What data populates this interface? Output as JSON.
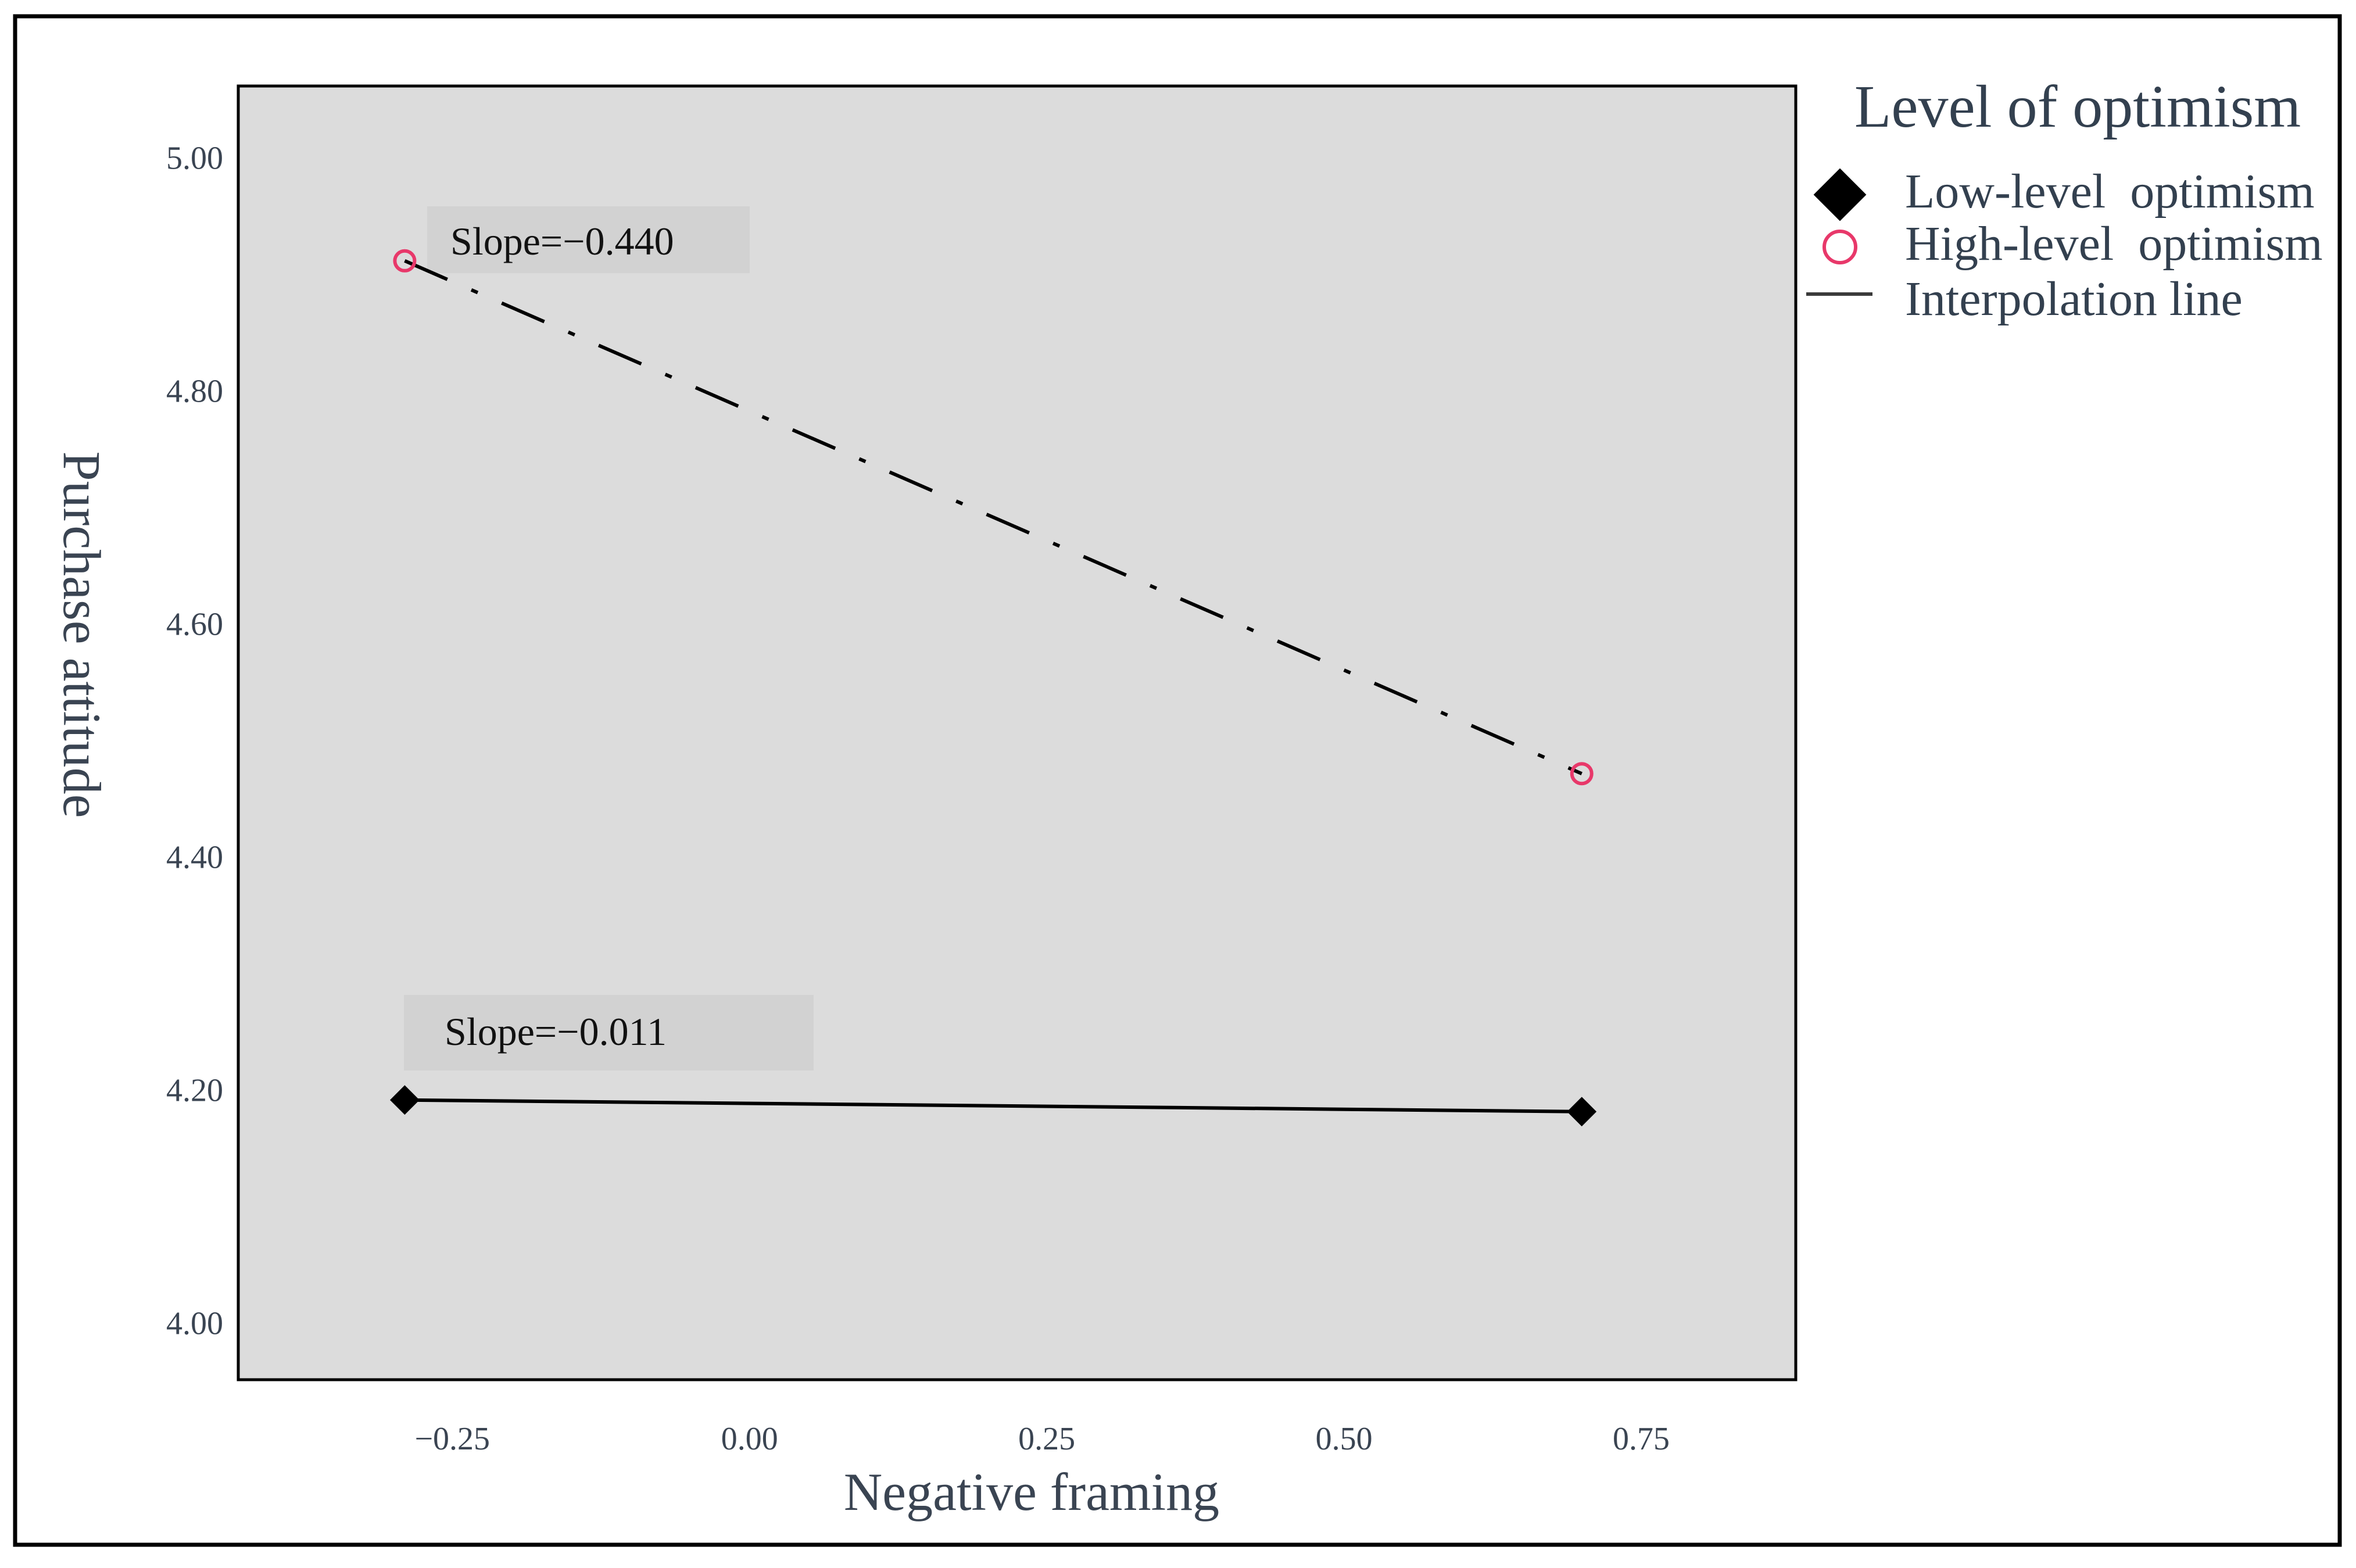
{
  "chart_data": {
    "type": "line",
    "xlabel": "Negative framing",
    "ylabel": "Purchase attitude",
    "xlim": [
      -0.43,
      0.88
    ],
    "ylim": [
      3.95,
      5.06
    ],
    "x_ticks": [
      -0.25,
      0.0,
      0.25,
      0.5,
      0.75
    ],
    "x_tick_labels": [
      "−0.25",
      "0.00",
      "0.25",
      "0.50",
      "0.75"
    ],
    "y_ticks": [
      4.0,
      4.2,
      4.4,
      4.6,
      4.8,
      5.0
    ],
    "y_tick_labels": [
      "4.00",
      "4.20",
      "4.40",
      "4.60",
      "4.80",
      "5.00"
    ],
    "grid": false,
    "legend": {
      "title": "Level of optimism",
      "position": "right",
      "items": [
        {
          "label": "Low-level  optimism",
          "marker": "diamond"
        },
        {
          "label": "High-level  optimism",
          "marker": "circle"
        },
        {
          "label": "Interpolation line",
          "marker": "line"
        }
      ]
    },
    "series": [
      {
        "name": "Low-level  optimism",
        "x": [
          -0.29,
          0.7
        ],
        "y": [
          4.19,
          4.18
        ],
        "marker": "diamond",
        "line_style": "solid",
        "color": "#000000",
        "annotation": "Slope=−0.011"
      },
      {
        "name": "High-level  optimism",
        "x": [
          -0.29,
          0.7
        ],
        "y": [
          4.91,
          4.47
        ],
        "marker": "circle",
        "line_style": "dashdot",
        "color": "#e8386a",
        "annotation": "Slope=−0.440"
      }
    ]
  },
  "colors": {
    "plot_background": "#dcdcdc",
    "frame": "#000000",
    "tick_text": "#3a4452",
    "axis_label": "#3a4452",
    "legend_text": "#33404f",
    "annotation_box": "#d2d2d2",
    "high_marker": "#e8386a",
    "low_marker": "#000000",
    "line": "#000000"
  }
}
